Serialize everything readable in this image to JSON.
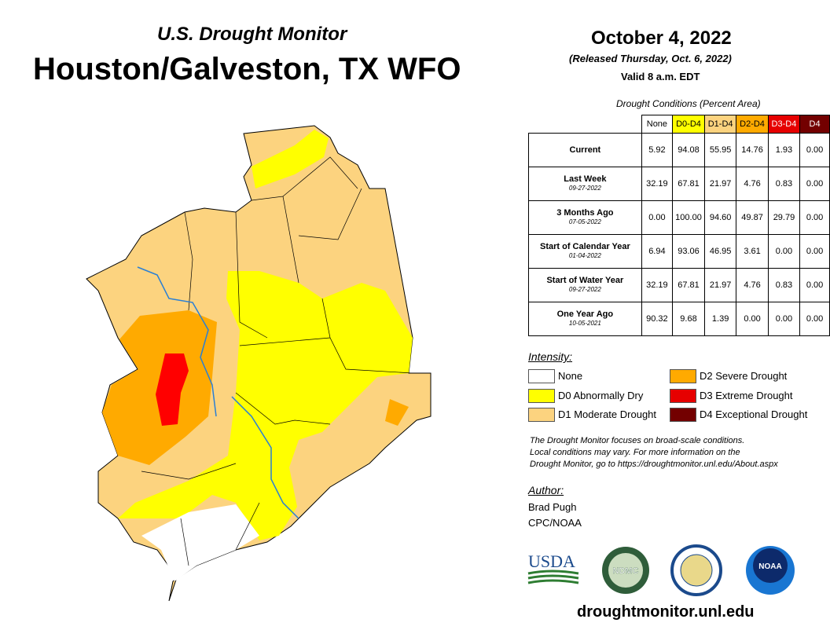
{
  "header": {
    "subtitle": "U.S. Drought Monitor",
    "title": "Houston/Galveston, TX WFO"
  },
  "date": {
    "date": "October 4, 2022",
    "released": "(Released Thursday, Oct. 6, 2022)",
    "valid": "Valid 8 a.m. EDT"
  },
  "table": {
    "caption": "Drought Conditions (Percent Area)",
    "columns": [
      "None",
      "D0-D4",
      "D1-D4",
      "D2-D4",
      "D3-D4",
      "D4"
    ],
    "rows": [
      {
        "label": "Current",
        "values": [
          "5.92",
          "94.08",
          "55.95",
          "14.76",
          "1.93",
          "0.00"
        ]
      },
      {
        "label": "Last Week",
        "date": "09-27-2022",
        "values": [
          "32.19",
          "67.81",
          "21.97",
          "4.76",
          "0.83",
          "0.00"
        ]
      },
      {
        "label": "3 Months Ago",
        "date": "07-05-2022",
        "values": [
          "0.00",
          "100.00",
          "94.60",
          "49.87",
          "29.79",
          "0.00"
        ]
      },
      {
        "label": "Start of Calendar Year",
        "date": "01-04-2022",
        "values": [
          "6.94",
          "93.06",
          "46.95",
          "3.61",
          "0.00",
          "0.00"
        ]
      },
      {
        "label": "Start of Water Year",
        "date": "09-27-2022",
        "values": [
          "32.19",
          "67.81",
          "21.97",
          "4.76",
          "0.83",
          "0.00"
        ]
      },
      {
        "label": "One Year Ago",
        "date": "10-05-2021",
        "values": [
          "90.32",
          "9.68",
          "1.39",
          "0.00",
          "0.00",
          "0.00"
        ]
      }
    ]
  },
  "legend": {
    "title": "Intensity:",
    "items": [
      "None",
      "D0 Abnormally Dry",
      "D1 Moderate Drought",
      "D2 Severe Drought",
      "D3 Extreme Drought",
      "D4 Exceptional Drought"
    ]
  },
  "note": [
    "The Drought Monitor focuses on broad-scale conditions.",
    "Local conditions may vary. For more information on the",
    "Drought Monitor, go to https://droughtmonitor.unl.edu/About.aspx"
  ],
  "author": {
    "heading": "Author:",
    "name": "Brad Pugh",
    "org": "CPC/NOAA"
  },
  "logos": [
    "USDA",
    "NDMC",
    "NOAA"
  ],
  "footer": "droughtmonitor.unl.edu"
}
